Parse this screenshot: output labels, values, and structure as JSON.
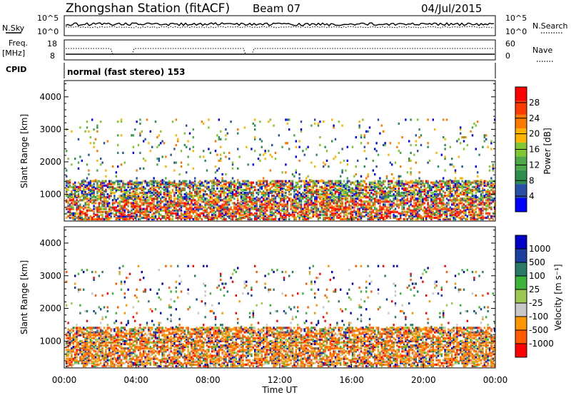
{
  "header": {
    "station": "Zhongshan Station (fitACF)",
    "beam": "Beam 07",
    "date": "04/Jul/2015"
  },
  "colors": {
    "power": [
      "#0000ff",
      "#2a4fa8",
      "#2c8f4e",
      "#4fa84a",
      "#7fc832",
      "#ffb400",
      "#ff7800",
      "#ff3c00",
      "#ff0000"
    ],
    "velocity": [
      "#ff0000",
      "#ff5a00",
      "#ff9600",
      "#c8c8c8",
      "#9bc850",
      "#3cb43c",
      "#2a7a6a",
      "#1a3fa0",
      "#0000c8"
    ]
  },
  "chart_data": [
    {
      "type": "line",
      "panel": "sky-noise",
      "left_label": "N.Sky",
      "right_label": "N.Search",
      "left_ticks": [
        "10^5",
        "10^0"
      ],
      "right_ticks": [
        "10^5",
        "10^0"
      ]
    },
    {
      "type": "line",
      "panel": "frequency-nave",
      "left_label_1": "Freq.",
      "left_label_2": "[MHz]",
      "right_label": "Nave",
      "left_ticks": [
        18,
        8
      ],
      "right_ticks": [
        60,
        0
      ]
    },
    {
      "type": "table",
      "panel": "cpid",
      "label": "CPID",
      "text": "normal (fast stereo) 153"
    },
    {
      "type": "heatmap",
      "panel": "power",
      "ylabel": "Slant Range [km]",
      "ylim": [
        180,
        4500
      ],
      "yticks": [
        1000,
        2000,
        3000,
        4000
      ],
      "colorbar_label": "Power [dB]",
      "colorbar_ticks": [
        4,
        8,
        12,
        16,
        20,
        24,
        28
      ]
    },
    {
      "type": "heatmap",
      "panel": "velocity",
      "ylabel": "Slant Range [km]",
      "ylim": [
        180,
        4500
      ],
      "yticks": [
        1000,
        2000,
        3000,
        4000
      ],
      "colorbar_label": "Velocity [m s⁻¹]",
      "colorbar_ticks": [
        "1000",
        "500",
        "100",
        "25",
        "-25",
        "-100",
        "-500",
        "-1000"
      ]
    }
  ],
  "xaxis": {
    "xlabel": "Time UT",
    "ticks": [
      "00:00",
      "04:00",
      "08:00",
      "12:00",
      "16:00",
      "20:00",
      "00:00"
    ],
    "xlim_hours": [
      0,
      24
    ]
  }
}
